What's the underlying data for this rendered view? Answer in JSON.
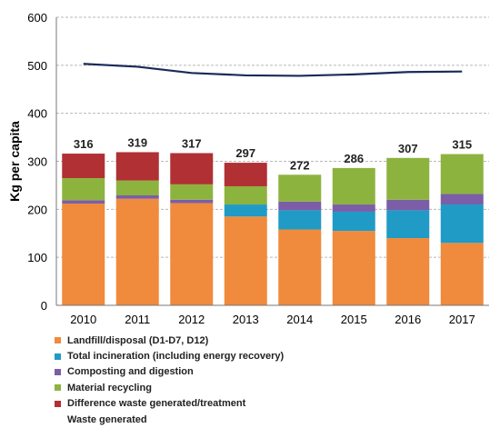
{
  "chart_data": {
    "type": "bar",
    "stacked": true,
    "ylabel": "Kg per capita",
    "ylim": [
      0,
      600
    ],
    "yticks": [
      0,
      100,
      200,
      300,
      400,
      500,
      600
    ],
    "grid": true,
    "legend_position": "bottom",
    "categories": [
      "2010",
      "2011",
      "2012",
      "2013",
      "2014",
      "2015",
      "2016",
      "2017"
    ],
    "totals": [
      316,
      319,
      317,
      297,
      272,
      286,
      307,
      315
    ],
    "series": [
      {
        "name": "Landfill/disposal (D1-D7, D12)",
        "color": "#f08a3c",
        "values": [
          212,
          222,
          213,
          185,
          158,
          155,
          140,
          130
        ]
      },
      {
        "name": "Total incineration (including energy recovery)",
        "color": "#1f9bc6",
        "values": [
          0,
          0,
          0,
          25,
          40,
          40,
          58,
          80
        ]
      },
      {
        "name": "Composting and digestion",
        "color": "#7b5ea7",
        "values": [
          7,
          7,
          7,
          0,
          18,
          15,
          22,
          22
        ]
      },
      {
        "name": "Material recycling",
        "color": "#8db33f",
        "values": [
          46,
          31,
          32,
          38,
          56,
          76,
          87,
          83
        ]
      },
      {
        "name": "Difference waste generated/treatment",
        "color": "#b03034",
        "values": [
          51,
          59,
          65,
          49,
          0,
          0,
          0,
          0
        ]
      }
    ],
    "line": {
      "name": "Waste generated",
      "color": "#1b2a5a",
      "values": [
        503,
        497,
        484,
        479,
        478,
        481,
        486,
        487
      ]
    }
  }
}
